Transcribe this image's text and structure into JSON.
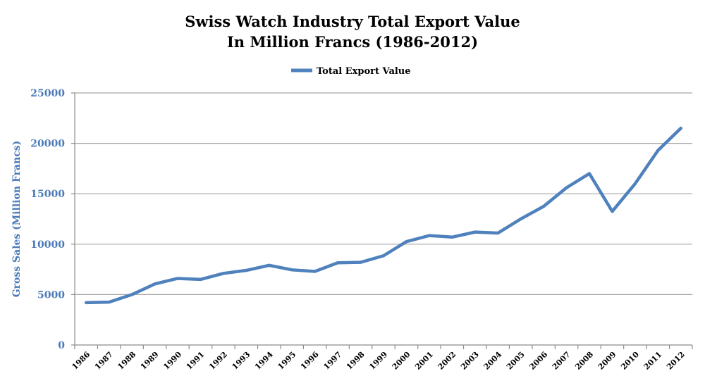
{
  "chart_data": {
    "type": "line",
    "title": [
      "Swiss Watch Industry Total Export Value",
      "In Million Francs (1986-2012)"
    ],
    "xlabel": "",
    "ylabel": "Gross Sales (Million Francs)",
    "ylim": [
      0,
      25000
    ],
    "yticks": [
      0,
      5000,
      10000,
      15000,
      20000,
      25000
    ],
    "grid": true,
    "legend_position": "top",
    "categories": [
      "1986",
      "1987",
      "1988",
      "1989",
      "1990",
      "1991",
      "1992",
      "1993",
      "1994",
      "1995",
      "1996",
      "1997",
      "1998",
      "1999",
      "2000",
      "2001",
      "2002",
      "2003",
      "2004",
      "2005",
      "2006",
      "2007",
      "2008",
      "2009",
      "2010",
      "2011",
      "2012"
    ],
    "series": [
      {
        "name": "Total Export Value",
        "color": "#4f81bd",
        "values": [
          4200,
          4250,
          5000,
          6050,
          6600,
          6500,
          7100,
          7400,
          7900,
          7450,
          7300,
          8150,
          8200,
          8850,
          10250,
          10850,
          10700,
          11200,
          11100,
          12500,
          13750,
          15600,
          17000,
          13250,
          16000,
          19300,
          21500
        ]
      }
    ]
  }
}
